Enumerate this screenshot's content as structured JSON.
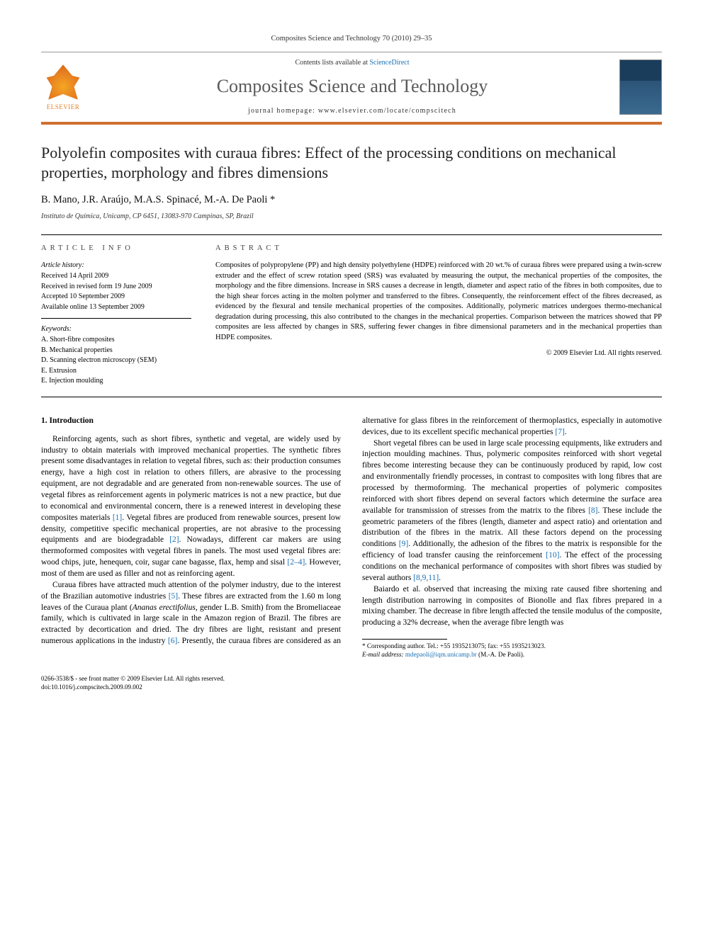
{
  "top_meta": "Composites Science and Technology 70 (2010) 29–35",
  "header": {
    "contents_prefix": "Contents lists available at ",
    "sciencedirect": "ScienceDirect",
    "journal_name": "Composites Science and Technology",
    "homepage_prefix": "journal homepage: ",
    "homepage_url": "www.elsevier.com/locate/compscitech",
    "publisher_name": "ELSEVIER"
  },
  "title": "Polyolefin composites with curaua fibres: Effect of the processing conditions on mechanical properties, morphology and fibres dimensions",
  "authors": "B. Mano, J.R. Araújo, M.A.S. Spinacé, M.-A. De Paoli *",
  "affiliation": "Instituto de Química, Unicamp, CP 6451, 13083-970 Campinas, SP, Brazil",
  "info": {
    "heading": "ARTICLE INFO",
    "history_label": "Article history:",
    "history": [
      "Received 14 April 2009",
      "Received in revised form 19 June 2009",
      "Accepted 10 September 2009",
      "Available online 13 September 2009"
    ],
    "keywords_label": "Keywords:",
    "keywords": [
      "A. Short-fibre composites",
      "B. Mechanical properties",
      "D. Scanning electron microscopy (SEM)",
      "E. Extrusion",
      "E. Injection moulding"
    ]
  },
  "abstract": {
    "heading": "ABSTRACT",
    "text": "Composites of polypropylene (PP) and high density polyethylene (HDPE) reinforced with 20 wt.% of curaua fibres were prepared using a twin-screw extruder and the effect of screw rotation speed (SRS) was evaluated by measuring the output, the mechanical properties of the composites, the morphology and the fibre dimensions. Increase in SRS causes a decrease in length, diameter and aspect ratio of the fibres in both composites, due to the high shear forces acting in the molten polymer and transferred to the fibres. Consequently, the reinforcement effect of the fibres decreased, as evidenced by the flexural and tensile mechanical properties of the composites. Additionally, polymeric matrices undergoes thermo-mechanical degradation during processing, this also contributed to the changes in the mechanical properties. Comparison between the matrices showed that PP composites are less affected by changes in SRS, suffering fewer changes in fibre dimensional parameters and in the mechanical properties than HDPE composites.",
    "copyright": "© 2009 Elsevier Ltd. All rights reserved."
  },
  "body": {
    "section_heading": "1. Introduction",
    "p1a": "Reinforcing agents, such as short fibres, synthetic and vegetal, are widely used by industry to obtain materials with improved mechanical properties. The synthetic fibres present some disadvantages in relation to vegetal fibres, such as: their production consumes energy, have a high cost in relation to others fillers, are abrasive to the processing equipment, are not degradable and are generated from non-renewable sources. The use of vegetal fibres as reinforcement agents in polymeric matrices is not a new practice, but due to economical and environmental concern, there is a renewed interest in developing these composites materials ",
    "ref1": "[1]",
    "p1b": ". Vegetal fibres are produced from renewable sources, present low density, competitive specific mechanical properties, are not abrasive to the processing equipments and are biodegradable ",
    "ref2": "[2]",
    "p1c": ". Nowadays, different car makers are using thermoformed composites with vegetal fibres in panels. The most used vegetal fibres are: wood chips, jute, henequen, coir, sugar cane bagasse, flax, hemp and sisal ",
    "ref3": "[2–4]",
    "p1d": ". However, most of them are used as filler and not as reinforcing agent.",
    "p2a": "Curaua fibres have attracted much attention of the polymer industry, due to the interest of the Brazilian automotive industries ",
    "ref4": "[5]",
    "p2b": ". These fibres are extracted from the 1.60 m long leaves of the Curaua plant (",
    "p2b_italic": "Ananas erectifolius",
    "p2c": ", gender L.B. Smith) from the Bromeliaceae family, which is cultivated in large scale in the Amazon",
    "p3a": "region of Brazil. The fibres are extracted by decortication and dried. The dry fibres are light, resistant and present numerous applications in the industry ",
    "ref5": "[6]",
    "p3b": ". Presently, the curaua fibres are considered as an alternative for glass fibres in the reinforcement of thermoplastics, especially in automotive devices, due to its excellent specific mechanical properties ",
    "ref6": "[7]",
    "p3c": ".",
    "p4a": "Short vegetal fibres can be used in large scale processing equipments, like extruders and injection moulding machines. Thus, polymeric composites reinforced with short vegetal fibres become interesting because they can be continuously produced by rapid, low cost and environmentally friendly processes, in contrast to composites with long fibres that are processed by thermoforming. The mechanical properties of polymeric composites reinforced with short fibres depend on several factors which determine the surface area available for transmission of stresses from the matrix to the fibres ",
    "ref7": "[8]",
    "p4b": ". These include the geometric parameters of the fibres (length, diameter and aspect ratio) and orientation and distribution of the fibres in the matrix. All these factors depend on the processing conditions ",
    "ref8": "[9]",
    "p4c": ". Additionally, the adhesion of the fibres to the matrix is responsible for the efficiency of load transfer causing the reinforcement ",
    "ref9": "[10]",
    "p4d": ". The effect of the processing conditions on the mechanical performance of composites with short fibres was studied by several authors ",
    "ref10": "[8,9,11]",
    "p4e": ".",
    "p5": "Baiardo et al. observed that increasing the mixing rate caused fibre shortening and length distribution narrowing in composites of Bionolle and flax fibres prepared in a mixing chamber. The decrease in fibre length affected the tensile modulus of the composite, producing a 32% decrease, when the average fibre length was"
  },
  "footnote": {
    "corr": "* Corresponding author. Tel.: +55 1935213075; fax: +55 1935213023.",
    "email_label": "E-mail address: ",
    "email": "mdepaoli@iqm.unicamp.br",
    "email_suffix": " (M.-A. De Paoli)."
  },
  "bottom": {
    "line1": "0266-3538/$ - see front matter © 2009 Elsevier Ltd. All rights reserved.",
    "line2": "doi:10.1016/j.compscitech.2009.09.002"
  },
  "colors": {
    "accent_orange": "#cf6e30",
    "link_blue": "#1a6fb3",
    "heading_gray": "#5a5a5a"
  }
}
